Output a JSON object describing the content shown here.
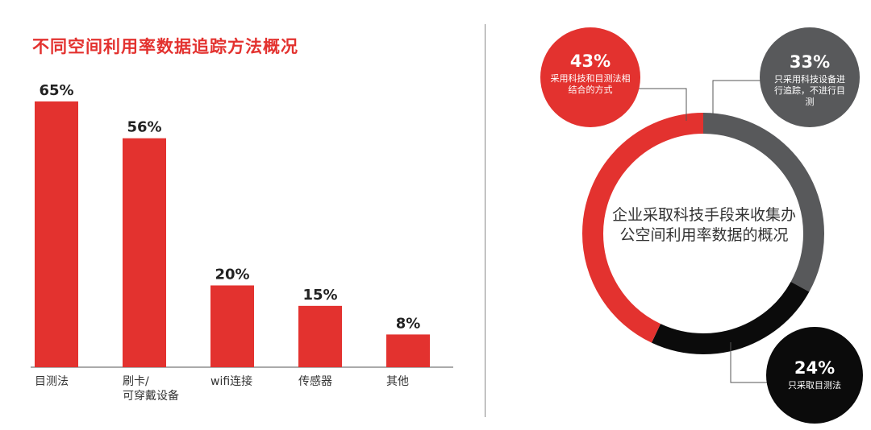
{
  "colors": {
    "red": "#e3322f",
    "gray": "#58595b",
    "black": "#0b0b0b"
  },
  "chart_data": [
    {
      "type": "bar",
      "title": "不同空间利用率数据追踪方法概况",
      "categories": [
        "目测法",
        "刷卡/\n可穿戴设备",
        "wifi连接",
        "传感器",
        "其他"
      ],
      "values": [
        65,
        56,
        20,
        15,
        8
      ],
      "value_labels": [
        "65%",
        "56%",
        "20%",
        "15%",
        "8%"
      ],
      "ylim": [
        0,
        65
      ],
      "grid": false
    },
    {
      "type": "pie",
      "title": "企业采取科技手段来收集办公空间利用率数据的概况",
      "slices": [
        {
          "label": "只采用科技设备进行追踪，不进行目测",
          "value": 33,
          "value_label": "33%",
          "color": "#58595b"
        },
        {
          "label": "只采取目测法",
          "value": 24,
          "value_label": "24%",
          "color": "#0b0b0b"
        },
        {
          "label": "采用科技和目测法相结合的方式",
          "value": 43,
          "value_label": "43%",
          "color": "#e3322f"
        }
      ]
    }
  ]
}
